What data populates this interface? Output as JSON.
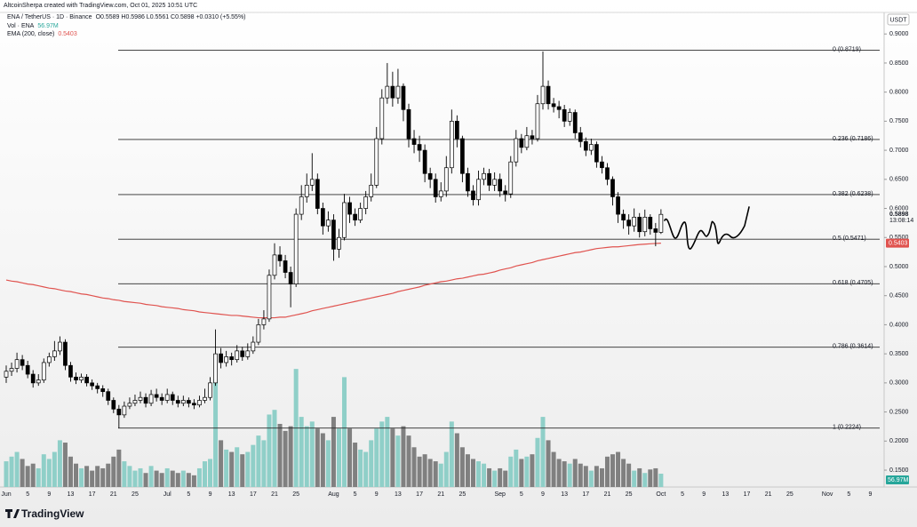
{
  "chart_data": {
    "type": "candlestick",
    "attribution": "AltcoinSherpa created with TradingView.com, Oct 01, 2025 10:51 UTC",
    "symbol": "ENA / TetherUS · 1D · Binance",
    "ohlc_legend": "O0.5589 H0.5986 L0.5561 C0.5898 +0.0310 (+5.55%)",
    "currency": "USDT",
    "brand": "TradingView",
    "price_label": "0.5898",
    "countdown": "13:08:14",
    "up_color": "#ffffff",
    "down_color": "#000000",
    "open": [
      0.31,
      0.32,
      0.325,
      0.34,
      0.33,
      0.315,
      0.3,
      0.305,
      0.335,
      0.345,
      0.355,
      0.37,
      0.33,
      0.31,
      0.305,
      0.31,
      0.3,
      0.295,
      0.29,
      0.285,
      0.27,
      0.255,
      0.245,
      0.26,
      0.265,
      0.27,
      0.275,
      0.265,
      0.28,
      0.275,
      0.27,
      0.28,
      0.27,
      0.265,
      0.27,
      0.265,
      0.262,
      0.27,
      0.275,
      0.3,
      0.35,
      0.335,
      0.345,
      0.34,
      0.355,
      0.345,
      0.355,
      0.37,
      0.4,
      0.41,
      0.485,
      0.52,
      0.51,
      0.49,
      0.47,
      0.59,
      0.62,
      0.64,
      0.65,
      0.6,
      0.57,
      0.58,
      0.53,
      0.55,
      0.61,
      0.59,
      0.58,
      0.6,
      0.62,
      0.64,
      0.72,
      0.79,
      0.81,
      0.79,
      0.81,
      0.77,
      0.72,
      0.71,
      0.7,
      0.66,
      0.65,
      0.62,
      0.63,
      0.67,
      0.75,
      0.72,
      0.66,
      0.63,
      0.615,
      0.65,
      0.66,
      0.64,
      0.65,
      0.63,
      0.625,
      0.68,
      0.72,
      0.705,
      0.725,
      0.72,
      0.78,
      0.81,
      0.78,
      0.775,
      0.77,
      0.75,
      0.765,
      0.73,
      0.715,
      0.7,
      0.71,
      0.68,
      0.67,
      0.65,
      0.62,
      0.59,
      0.58,
      0.57,
      0.585,
      0.56,
      0.585,
      0.565,
      0.5589
    ],
    "high": [
      0.33,
      0.335,
      0.352,
      0.348,
      0.338,
      0.322,
      0.315,
      0.342,
      0.352,
      0.372,
      0.38,
      0.375,
      0.336,
      0.318,
      0.316,
      0.315,
      0.306,
      0.3,
      0.296,
      0.29,
      0.275,
      0.262,
      0.268,
      0.275,
      0.28,
      0.285,
      0.282,
      0.288,
      0.29,
      0.282,
      0.29,
      0.285,
      0.278,
      0.278,
      0.275,
      0.272,
      0.278,
      0.29,
      0.31,
      0.392,
      0.36,
      0.355,
      0.352,
      0.365,
      0.362,
      0.368,
      0.38,
      0.41,
      0.425,
      0.495,
      0.54,
      0.535,
      0.52,
      0.5,
      0.6,
      0.64,
      0.66,
      0.695,
      0.66,
      0.61,
      0.595,
      0.59,
      0.565,
      0.625,
      0.62,
      0.6,
      0.61,
      0.63,
      0.66,
      0.74,
      0.805,
      0.85,
      0.835,
      0.84,
      0.815,
      0.78,
      0.735,
      0.725,
      0.71,
      0.67,
      0.66,
      0.645,
      0.69,
      0.77,
      0.76,
      0.725,
      0.67,
      0.64,
      0.665,
      0.67,
      0.668,
      0.662,
      0.66,
      0.64,
      0.69,
      0.735,
      0.728,
      0.74,
      0.735,
      0.795,
      0.87,
      0.82,
      0.79,
      0.785,
      0.778,
      0.772,
      0.77,
      0.74,
      0.722,
      0.72,
      0.715,
      0.69,
      0.678,
      0.655,
      0.628,
      0.598,
      0.59,
      0.6,
      0.592,
      0.598,
      0.59,
      0.575,
      0.5986
    ],
    "low": [
      0.3,
      0.312,
      0.318,
      0.322,
      0.308,
      0.292,
      0.295,
      0.3,
      0.328,
      0.338,
      0.348,
      0.322,
      0.302,
      0.298,
      0.3,
      0.294,
      0.288,
      0.282,
      0.276,
      0.262,
      0.248,
      0.222,
      0.24,
      0.255,
      0.26,
      0.265,
      0.258,
      0.26,
      0.268,
      0.262,
      0.265,
      0.262,
      0.258,
      0.26,
      0.258,
      0.255,
      0.258,
      0.265,
      0.27,
      0.295,
      0.325,
      0.328,
      0.33,
      0.335,
      0.338,
      0.34,
      0.35,
      0.365,
      0.392,
      0.405,
      0.478,
      0.5,
      0.48,
      0.43,
      0.465,
      0.58,
      0.61,
      0.63,
      0.59,
      0.555,
      0.56,
      0.51,
      0.515,
      0.545,
      0.575,
      0.57,
      0.575,
      0.59,
      0.612,
      0.635,
      0.71,
      0.78,
      0.775,
      0.78,
      0.75,
      0.705,
      0.695,
      0.68,
      0.645,
      0.635,
      0.61,
      0.612,
      0.62,
      0.66,
      0.705,
      0.645,
      0.62,
      0.605,
      0.605,
      0.64,
      0.63,
      0.63,
      0.62,
      0.612,
      0.618,
      0.672,
      0.695,
      0.7,
      0.71,
      0.715,
      0.77,
      0.77,
      0.765,
      0.755,
      0.74,
      0.742,
      0.72,
      0.705,
      0.69,
      0.692,
      0.67,
      0.66,
      0.64,
      0.605,
      0.575,
      0.565,
      0.555,
      0.56,
      0.55,
      0.552,
      0.555,
      0.535,
      0.5561
    ],
    "close": [
      0.32,
      0.325,
      0.34,
      0.33,
      0.315,
      0.3,
      0.305,
      0.335,
      0.345,
      0.355,
      0.37,
      0.33,
      0.31,
      0.305,
      0.31,
      0.3,
      0.295,
      0.29,
      0.285,
      0.27,
      0.255,
      0.245,
      0.26,
      0.265,
      0.27,
      0.275,
      0.265,
      0.28,
      0.275,
      0.27,
      0.28,
      0.27,
      0.265,
      0.27,
      0.265,
      0.262,
      0.27,
      0.275,
      0.3,
      0.35,
      0.335,
      0.345,
      0.34,
      0.355,
      0.345,
      0.355,
      0.37,
      0.4,
      0.41,
      0.485,
      0.52,
      0.51,
      0.49,
      0.47,
      0.59,
      0.62,
      0.64,
      0.65,
      0.6,
      0.57,
      0.58,
      0.53,
      0.55,
      0.61,
      0.59,
      0.58,
      0.6,
      0.62,
      0.64,
      0.72,
      0.79,
      0.81,
      0.79,
      0.81,
      0.77,
      0.72,
      0.71,
      0.7,
      0.66,
      0.65,
      0.62,
      0.63,
      0.67,
      0.75,
      0.72,
      0.66,
      0.63,
      0.615,
      0.65,
      0.66,
      0.64,
      0.65,
      0.63,
      0.625,
      0.68,
      0.72,
      0.705,
      0.725,
      0.72,
      0.78,
      0.81,
      0.78,
      0.775,
      0.77,
      0.75,
      0.765,
      0.73,
      0.715,
      0.7,
      0.71,
      0.68,
      0.67,
      0.65,
      0.62,
      0.59,
      0.58,
      0.57,
      0.585,
      0.56,
      0.585,
      0.565,
      0.5589,
      0.5898
    ],
    "ylim": [
      0.121,
      0.937
    ],
    "yticks": [
      {
        "value": 0.15,
        "label": "0.1500"
      },
      {
        "value": 0.2,
        "label": "0.2000"
      },
      {
        "value": 0.25,
        "label": "0.2500"
      },
      {
        "value": 0.3,
        "label": "0.3000"
      },
      {
        "value": 0.35,
        "label": "0.3500"
      },
      {
        "value": 0.4,
        "label": "0.4000"
      },
      {
        "value": 0.45,
        "label": "0.4500"
      },
      {
        "value": 0.5,
        "label": "0.5000"
      },
      {
        "value": 0.55,
        "label": "0.5500"
      },
      {
        "value": 0.6,
        "label": "0.6000"
      },
      {
        "value": 0.65,
        "label": "0.6500"
      },
      {
        "value": 0.7,
        "label": "0.7000"
      },
      {
        "value": 0.75,
        "label": "0.7500"
      },
      {
        "value": 0.8,
        "label": "0.8000"
      },
      {
        "value": 0.85,
        "label": "0.8500"
      },
      {
        "value": 0.9,
        "label": "0.9000"
      }
    ],
    "x_labels": [
      "Jun",
      "5",
      "9",
      "13",
      "17",
      "21",
      "25",
      "Jul",
      "5",
      "9",
      "13",
      "17",
      "21",
      "25",
      "Aug",
      "5",
      "9",
      "13",
      "17",
      "21",
      "25",
      "Sep",
      "5",
      "9",
      "13",
      "17",
      "21",
      "25",
      "Oct",
      "5",
      "9",
      "13",
      "17",
      "21",
      "25",
      "Nov",
      "5",
      "9"
    ],
    "volume": {
      "name": "Vol · ENA",
      "last_label": "56.97M",
      "up_color": "#8fcfc8",
      "down_color": "#808080",
      "values": [
        110,
        130,
        150,
        120,
        90,
        100,
        80,
        140,
        120,
        150,
        200,
        190,
        130,
        100,
        80,
        90,
        70,
        90,
        80,
        100,
        130,
        160,
        110,
        90,
        70,
        80,
        60,
        90,
        70,
        60,
        80,
        70,
        60,
        70,
        60,
        50,
        80,
        110,
        120,
        460,
        200,
        160,
        150,
        170,
        140,
        150,
        180,
        220,
        200,
        310,
        330,
        270,
        240,
        260,
        505,
        300,
        260,
        280,
        250,
        230,
        200,
        300,
        250,
        470,
        250,
        190,
        160,
        150,
        200,
        250,
        280,
        300,
        250,
        220,
        260,
        220,
        170,
        130,
        140,
        120,
        110,
        100,
        150,
        280,
        230,
        170,
        140,
        120,
        110,
        100,
        80,
        70,
        80,
        70,
        130,
        160,
        120,
        130,
        140,
        210,
        300,
        200,
        150,
        120,
        110,
        100,
        120,
        100,
        90,
        70,
        90,
        80,
        130,
        140,
        150,
        120,
        100,
        70,
        80,
        60,
        75,
        80,
        56.97
      ]
    },
    "y2lim": [
      0,
      2030
    ],
    "ema": {
      "name": "EMA (200, close)",
      "last_label": "0.5403",
      "color": "#e0534f",
      "values": [
        0.477,
        0.475,
        0.474,
        0.472,
        0.47,
        0.469,
        0.467,
        0.465,
        0.463,
        0.462,
        0.46,
        0.458,
        0.457,
        0.455,
        0.453,
        0.452,
        0.45,
        0.448,
        0.446,
        0.445,
        0.443,
        0.442,
        0.44,
        0.439,
        0.438,
        0.437,
        0.435,
        0.434,
        0.433,
        0.431,
        0.43,
        0.429,
        0.428,
        0.426,
        0.425,
        0.424,
        0.422,
        0.421,
        0.42,
        0.419,
        0.418,
        0.417,
        0.416,
        0.416,
        0.415,
        0.414,
        0.413,
        0.412,
        0.412,
        0.412,
        0.412,
        0.413,
        0.413,
        0.415,
        0.417,
        0.419,
        0.421,
        0.424,
        0.426,
        0.428,
        0.43,
        0.432,
        0.434,
        0.436,
        0.438,
        0.44,
        0.442,
        0.444,
        0.446,
        0.448,
        0.45,
        0.452,
        0.454,
        0.457,
        0.459,
        0.461,
        0.463,
        0.465,
        0.468,
        0.47,
        0.472,
        0.474,
        0.475,
        0.477,
        0.479,
        0.48,
        0.482,
        0.484,
        0.486,
        0.487,
        0.489,
        0.491,
        0.494,
        0.496,
        0.498,
        0.501,
        0.503,
        0.505,
        0.507,
        0.51,
        0.512,
        0.514,
        0.516,
        0.518,
        0.52,
        0.522,
        0.524,
        0.525,
        0.527,
        0.529,
        0.531,
        0.532,
        0.533,
        0.534,
        0.534,
        0.535,
        0.536,
        0.537,
        0.538,
        0.5386,
        0.5392,
        0.5398,
        0.5403
      ]
    },
    "fib": [
      {
        "value": 0.8719,
        "label": "0 (0.8719)"
      },
      {
        "value": 0.7186,
        "label": "0.236 (0.7186)"
      },
      {
        "value": 0.6238,
        "label": "0.382 (0.6238)"
      },
      {
        "value": 0.5471,
        "label": "0.5 (0.5471)"
      },
      {
        "value": 0.4705,
        "label": "0.618 (0.4705)"
      },
      {
        "value": 0.3614,
        "label": "0.786 (0.3614)"
      },
      {
        "value": 0.2224,
        "label": "1 (0.2224)"
      }
    ],
    "fib_color": "#2b2b2b"
  }
}
